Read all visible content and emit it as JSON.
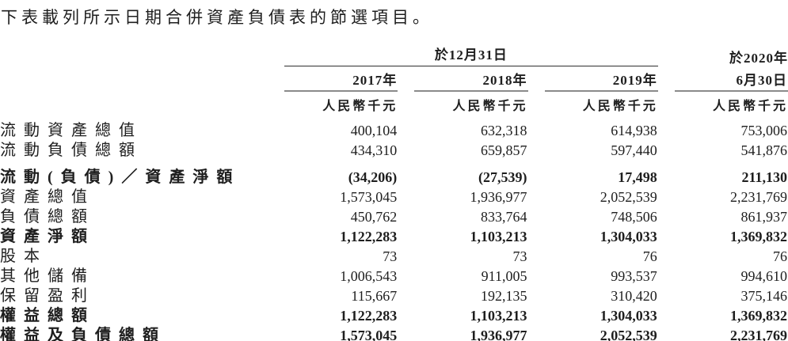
{
  "title": "下表載列所示日期合併資產負債表的節選項目。",
  "table": {
    "header": {
      "date_group": "於12月31日",
      "period_2020_line1": "於2020年",
      "period_2020_line2": "6月30日",
      "years": [
        "2017年",
        "2018年",
        "2019年"
      ],
      "unit": "人民幣千元"
    },
    "rows": [
      {
        "label": "流動資產總值",
        "values": [
          "400,104",
          "632,318",
          "614,938",
          "753,006"
        ]
      },
      {
        "label": "流動負債總額",
        "values": [
          "434,310",
          "659,857",
          "597,440",
          "541,876"
        ]
      },
      {
        "label": "流動(負債)／資產淨額",
        "values": [
          "(34,206)",
          "(27,539)",
          "17,498",
          "211,130"
        ]
      },
      {
        "label": "資產總值",
        "values": [
          "1,573,045",
          "1,936,977",
          "2,052,539",
          "2,231,769"
        ]
      },
      {
        "label": "負債總額",
        "values": [
          "450,762",
          "833,764",
          "748,506",
          "861,937"
        ]
      },
      {
        "label": "資產淨額",
        "values": [
          "1,122,283",
          "1,103,213",
          "1,304,033",
          "1,369,832"
        ]
      },
      {
        "label": "股本",
        "values": [
          "73",
          "73",
          "76",
          "76"
        ]
      },
      {
        "label": "其他儲備",
        "values": [
          "1,006,543",
          "911,005",
          "993,537",
          "994,610"
        ]
      },
      {
        "label": "保留盈利",
        "values": [
          "115,667",
          "192,135",
          "310,420",
          "375,146"
        ]
      },
      {
        "label": "權益總額",
        "values": [
          "1,122,283",
          "1,103,213",
          "1,304,033",
          "1,369,832"
        ]
      },
      {
        "label": "權益及負債總額",
        "values": [
          "1,573,045",
          "1,936,977",
          "2,052,539",
          "2,231,769"
        ]
      }
    ]
  }
}
